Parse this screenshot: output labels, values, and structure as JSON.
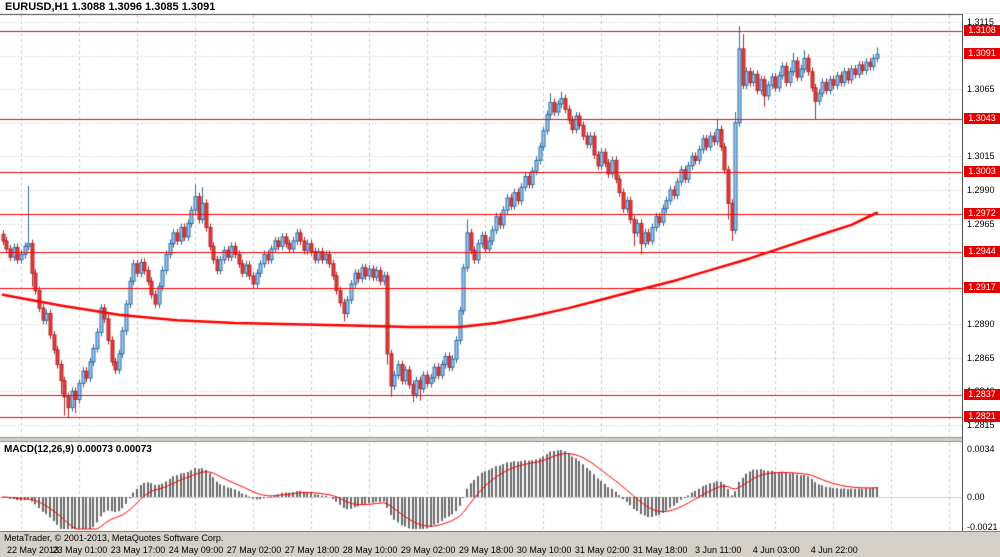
{
  "header": {
    "symbol_info": "EURUSD,H1 1.3088 1.3096 1.3085 1.3091"
  },
  "footer": {
    "copyright": "MetaTrader, © 2001-2013, MetaQuotes Software Corp."
  },
  "colors": {
    "background": "#ffffff",
    "grid": "#cdcdcd",
    "bull_body": "#9cc6ee",
    "bull_edge": "#2e6da4",
    "bear_body": "#e03c3c",
    "bear_edge": "#b52828",
    "line_red": "#ff0000",
    "ma_red": "#ff0000",
    "badge_bg": "#e40000",
    "badge_text": "#ffffff",
    "macd_hist": "#6a6a6a",
    "macd_signal": "#ff0000",
    "panel_bg": "#d4d0c8",
    "axis_text": "#000000"
  },
  "chart_data": {
    "type": "candlestick",
    "symbol": "EURUSD",
    "timeframe": "H1",
    "ohlc_current": {
      "open": 1.3088,
      "high": 1.3096,
      "low": 1.3085,
      "close": 1.3091
    },
    "current_price": 1.3091,
    "y_axis": {
      "range": {
        "min": 1.2815,
        "max": 1.3115
      },
      "step": 0.0025,
      "ticks": [
        {
          "label": "1.3115",
          "value": 1.3115
        },
        {
          "label": "1.3065",
          "value": 1.3065
        },
        {
          "label": "1.3015",
          "value": 1.3015
        },
        {
          "label": "1.2990",
          "value": 1.299
        },
        {
          "label": "1.2965",
          "value": 1.2965
        },
        {
          "label": "1.2890",
          "value": 1.289
        },
        {
          "label": "1.2865",
          "value": 1.2865
        },
        {
          "label": "1.2840",
          "value": 1.284
        },
        {
          "label": "1.2815",
          "value": 1.2815
        }
      ],
      "badges": [
        {
          "label": "1.3108",
          "value": 1.3108
        },
        {
          "label": "1.3091",
          "value": 1.3091
        },
        {
          "label": "1.3043",
          "value": 1.3043
        },
        {
          "label": "1.3003",
          "value": 1.3003
        },
        {
          "label": "1.2972",
          "value": 1.2972
        },
        {
          "label": "1.2944",
          "value": 1.2944
        },
        {
          "label": "1.2917",
          "value": 1.2917
        },
        {
          "label": "1.2837",
          "value": 1.2837
        },
        {
          "label": "1.2821",
          "value": 1.2821
        }
      ]
    },
    "hlines": [
      1.3108,
      1.3043,
      1.3003,
      1.2972,
      1.2944,
      1.2917,
      1.2837,
      1.2821
    ],
    "x_labels": [
      "22 May 2013",
      "23 May 01:00",
      "23 May 17:00",
      "24 May 09:00",
      "27 May 02:00",
      "27 May 18:00",
      "28 May 10:00",
      "29 May 02:00",
      "29 May 18:00",
      "30 May 10:00",
      "31 May 02:00",
      "31 May 18:00",
      "3 Jun 11:00",
      "4 Jun 03:00",
      "4 Jun 22:00"
    ],
    "x_label_bars": [
      5,
      21,
      37,
      53,
      69,
      85,
      101,
      117,
      133,
      149,
      165,
      181,
      197,
      213,
      229
    ],
    "default_wick": 0.0003,
    "closes": [
      1.2952,
      1.2946,
      1.294,
      1.2947,
      1.2938,
      1.2942,
      1.2948,
      1.295,
      1.2928,
      1.2915,
      1.2902,
      1.2893,
      1.2898,
      1.2882,
      1.2871,
      1.286,
      1.2848,
      1.2836,
      1.2828,
      1.284,
      1.2834,
      1.2846,
      1.2855,
      1.285,
      1.2862,
      1.2872,
      1.2884,
      1.2902,
      1.2894,
      1.2878,
      1.2862,
      1.2856,
      1.2868,
      1.2885,
      1.2905,
      1.2922,
      1.2935,
      1.2928,
      1.2936,
      1.293,
      1.2922,
      1.2912,
      1.2905,
      1.2918,
      1.293,
      1.2942,
      1.295,
      1.2958,
      1.2952,
      1.2962,
      1.2955,
      1.2965,
      1.2975,
      1.2985,
      1.2968,
      1.298,
      1.2962,
      1.2948,
      1.2938,
      1.293,
      1.2938,
      1.2945,
      1.294,
      1.2948,
      1.2942,
      1.2935,
      1.2928,
      1.2934,
      1.2926,
      1.292,
      1.2928,
      1.2935,
      1.2942,
      1.2938,
      1.2946,
      1.2952,
      1.2948,
      1.2955,
      1.295,
      1.2946,
      1.2952,
      1.2958,
      1.2952,
      1.2945,
      1.295,
      1.2944,
      1.2938,
      1.2944,
      1.2938,
      1.2942,
      1.2935,
      1.2926,
      1.2915,
      1.2906,
      1.2898,
      1.2908,
      1.292,
      1.2928,
      1.2924,
      1.2932,
      1.2926,
      1.2931,
      1.2925,
      1.293,
      1.2922,
      1.2926,
      1.2868,
      1.2844,
      1.2852,
      1.286,
      1.2848,
      1.2856,
      1.2845,
      1.2838,
      1.2848,
      1.2842,
      1.2852,
      1.2846,
      1.285,
      1.2858,
      1.2852,
      1.286,
      1.2866,
      1.2858,
      1.2864,
      1.2878,
      1.29,
      1.2932,
      1.2958,
      1.2945,
      1.2938,
      1.295,
      1.2956,
      1.2946,
      1.2952,
      1.296,
      1.297,
      1.2964,
      1.2975,
      1.2984,
      1.2978,
      1.2988,
      1.2982,
      1.2992,
      1.3,
      1.2994,
      1.3004,
      1.3012,
      1.3022,
      1.3034,
      1.3046,
      1.3055,
      1.3048,
      1.3054,
      1.3058,
      1.305,
      1.3042,
      1.3035,
      1.3045,
      1.3038,
      1.303,
      1.3024,
      1.303,
      1.3016,
      1.3008,
      1.3018,
      1.301,
      1.3002,
      1.3012,
      1.2998,
      1.2988,
      1.2976,
      1.2982,
      1.2968,
      1.2958,
      1.2965,
      1.295,
      1.2958,
      1.2952,
      1.2962,
      1.297,
      1.2966,
      1.2976,
      1.2982,
      1.299,
      1.2986,
      1.2996,
      1.3005,
      1.2998,
      1.3008,
      1.3015,
      1.3012,
      1.302,
      1.3028,
      1.3022,
      1.303,
      1.3026,
      1.3035,
      1.3022,
      1.3005,
      1.298,
      1.296,
      1.304,
      1.3095,
      1.3068,
      1.3078,
      1.307,
      1.3076,
      1.3064,
      1.3072,
      1.306,
      1.3068,
      1.3074,
      1.3066,
      1.3075,
      1.3082,
      1.307,
      1.3078,
      1.3086,
      1.3074,
      1.308,
      1.3088,
      1.3078,
      1.3066,
      1.3056,
      1.3062,
      1.307,
      1.3064,
      1.3072,
      1.3068,
      1.3075,
      1.307,
      1.3078,
      1.3072,
      1.308,
      1.3076,
      1.3083,
      1.3079,
      1.3085,
      1.3082,
      1.3088,
      1.3091
    ],
    "wick_up_overrides": {
      "7": 1.2993,
      "53": 1.2994,
      "55": 1.2992,
      "128": 1.2968,
      "151": 1.3062,
      "154": 1.3063,
      "197": 1.3042,
      "202": 1.3048,
      "203": 1.3112,
      "204": 1.3106,
      "218": 1.3092,
      "221": 1.3094,
      "241": 1.3096
    },
    "wick_dn_overrides": {
      "8": 1.2918,
      "16": 1.2838,
      "17": 1.2822,
      "18": 1.282,
      "20": 1.2824,
      "94": 1.2892,
      "106": 1.286,
      "107": 1.2836,
      "113": 1.2832,
      "115": 1.2833,
      "174": 1.2948,
      "176": 1.2942,
      "200": 1.2968,
      "201": 1.2952,
      "210": 1.3052,
      "224": 1.3042,
      "241": 1.3085
    },
    "ma_points": [
      [
        0,
        1.2912
      ],
      [
        16,
        1.2904
      ],
      [
        32,
        1.2897
      ],
      [
        48,
        1.2893
      ],
      [
        64,
        1.2891
      ],
      [
        80,
        1.289
      ],
      [
        96,
        1.2889
      ],
      [
        112,
        1.2888
      ],
      [
        126,
        1.2888
      ],
      [
        136,
        1.2891
      ],
      [
        146,
        1.2896
      ],
      [
        156,
        1.2902
      ],
      [
        166,
        1.2909
      ],
      [
        176,
        1.2916
      ],
      [
        186,
        1.2923
      ],
      [
        196,
        1.2931
      ],
      [
        206,
        1.2939
      ],
      [
        216,
        1.2948
      ],
      [
        226,
        1.2957
      ],
      [
        234,
        1.2964
      ],
      [
        241,
        1.2973
      ]
    ],
    "macd": {
      "label": "MACD(12,26,9) 0.00073 0.00073",
      "params": [
        12,
        26,
        9
      ],
      "value": 0.00073,
      "signal_value": 0.00073,
      "ticks": [
        {
          "label": "0.0034",
          "value": 0.0034
        },
        {
          "label": "0.00",
          "value": 0
        },
        {
          "label": "-0.0021",
          "value": -0.0021
        }
      ]
    }
  }
}
